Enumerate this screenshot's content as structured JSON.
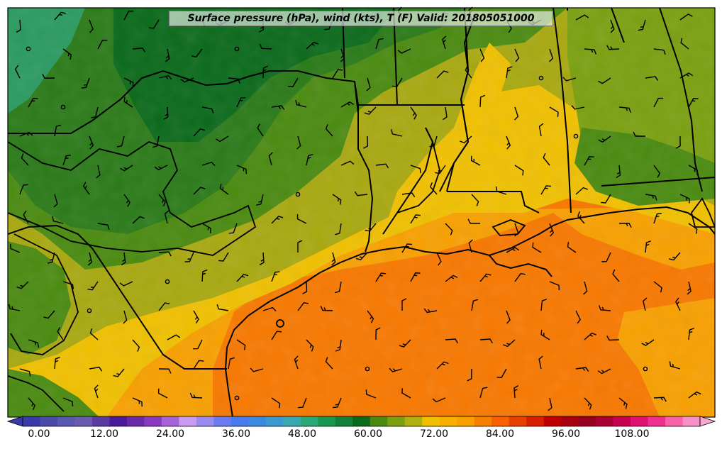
{
  "title": "Surface pressure (hPa), wind (kts), T (F) Valid: 201805051000",
  "colorbar": {
    "ticks": [
      "0.00",
      "12.00",
      "24.00",
      "36.00",
      "48.00",
      "60.00",
      "72.00",
      "84.00",
      "96.00",
      "108.00"
    ],
    "colors": [
      "#3a3aa8",
      "#4a4aa8",
      "#5858b0",
      "#6a5ab0",
      "#5a3aa0",
      "#4a1a98",
      "#6a2aa8",
      "#8a3ac0",
      "#a862d8",
      "#c89af0",
      "#9a8af0",
      "#6a7af0",
      "#4a7af0",
      "#3a8ae0",
      "#3a9ad0",
      "#3aa8b0",
      "#2aa878",
      "#1a9850",
      "#128038",
      "#0a6a1a",
      "#4a8a10",
      "#7aa010",
      "#b0b010",
      "#f0c000",
      "#f8b000",
      "#f8a000",
      "#f88000",
      "#f86000",
      "#e84000",
      "#d82000",
      "#c00000",
      "#a80010",
      "#980020",
      "#a80030",
      "#c80050",
      "#e01070",
      "#f03090",
      "#f860a8",
      "#f890c8"
    ]
  },
  "wind_barbs": "many",
  "stations": "many"
}
